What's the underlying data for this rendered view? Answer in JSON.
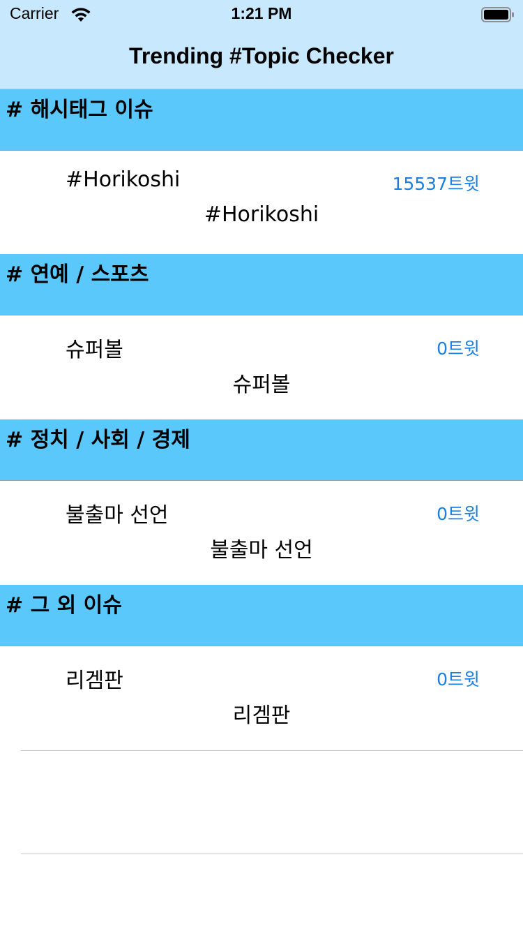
{
  "status_bar": {
    "carrier": "Carrier",
    "time": "1:21 PM",
    "wifi_icon": "wifi-icon",
    "battery_icon": "battery-icon"
  },
  "nav": {
    "title": "Trending #Topic Checker"
  },
  "colors": {
    "nav_background": "#c8e8fd",
    "section_background": "#5ac8fa",
    "count_text": "#1a7fe2",
    "separator": "#c8c7cc"
  },
  "sections": [
    {
      "title": "# 해시태그 이슈",
      "rows": [
        {
          "title": "#Horikoshi",
          "count": "15537트윗",
          "subtitle": "#Horikoshi"
        }
      ]
    },
    {
      "title": "# 연예 / 스포츠",
      "rows": [
        {
          "title": "슈퍼볼",
          "count": "0트윗",
          "subtitle": "슈퍼볼"
        }
      ]
    },
    {
      "title": "# 정치 / 사회 / 경제",
      "rows": [
        {
          "title": "불출마 선언",
          "count": "0트윗",
          "subtitle": "불출마 선언"
        }
      ]
    },
    {
      "title": "# 그 외 이슈",
      "rows": [
        {
          "title": "리겜판",
          "count": "0트윗",
          "subtitle": "리겜판"
        }
      ]
    }
  ]
}
